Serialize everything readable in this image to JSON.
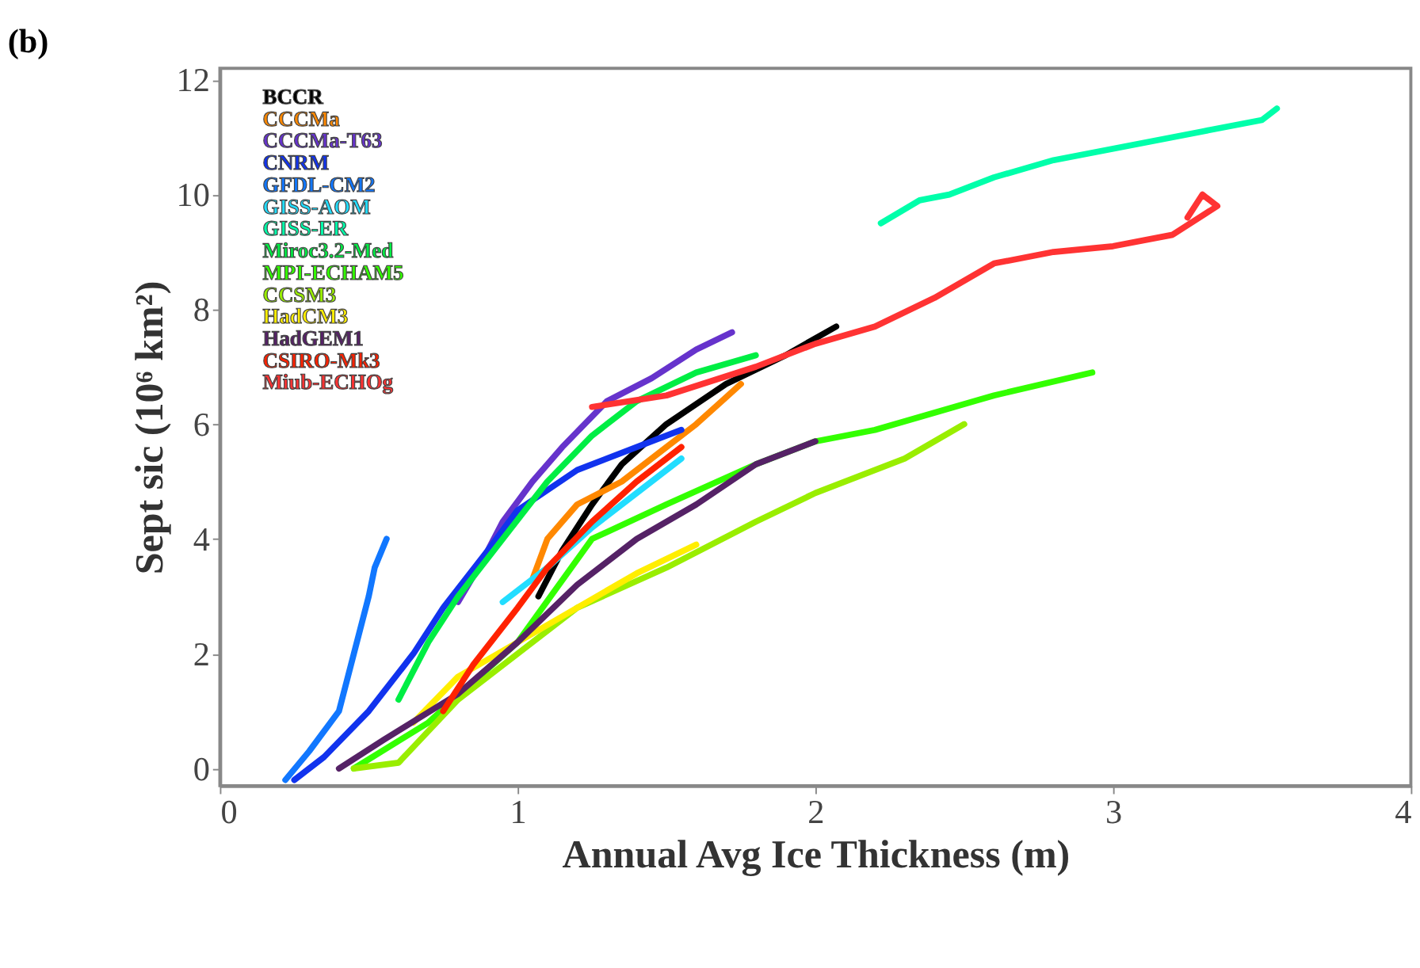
{
  "chart_data": {
    "type": "line",
    "title": "(b)",
    "xlabel": "Annual Avg Ice Thickness (m)",
    "ylabel": "Sept sic (10⁶ km²)",
    "xlim": [
      0,
      4
    ],
    "xticks": [
      0,
      1,
      2,
      3,
      4
    ],
    "ylim": [
      -0.3,
      12.2
    ],
    "yticks": [
      0,
      2,
      4,
      6,
      8,
      10,
      12
    ],
    "grid": false,
    "legend": "top left",
    "marker": "none",
    "line_style": "solid",
    "series": [
      {
        "name": "BCCR",
        "color": "#000000",
        "x": [
          1.07,
          1.15,
          1.25,
          1.35,
          1.5,
          1.7,
          1.9,
          2.07
        ],
        "values": [
          3.0,
          3.8,
          4.6,
          5.3,
          6.0,
          6.7,
          7.2,
          7.7
        ]
      },
      {
        "name": "CCCMa",
        "color": "#ff8800",
        "x": [
          1.05,
          1.1,
          1.2,
          1.35,
          1.5,
          1.6,
          1.75
        ],
        "values": [
          3.3,
          4.0,
          4.6,
          5.0,
          5.6,
          6.0,
          6.7
        ]
      },
      {
        "name": "CCCMa-T63",
        "color": "#6633cc",
        "x": [
          0.8,
          0.88,
          0.95,
          1.05,
          1.15,
          1.3,
          1.45,
          1.6,
          1.72
        ],
        "values": [
          2.9,
          3.6,
          4.3,
          5.0,
          5.6,
          6.4,
          6.8,
          7.3,
          7.6
        ]
      },
      {
        "name": "CNRM",
        "color": "#1133ee",
        "x": [
          0.25,
          0.35,
          0.5,
          0.65,
          0.75,
          0.9,
          1.0,
          1.2,
          1.4,
          1.55
        ],
        "values": [
          -0.2,
          0.2,
          1.0,
          2.0,
          2.8,
          3.8,
          4.5,
          5.2,
          5.6,
          5.9
        ]
      },
      {
        "name": "GFDL-CM2",
        "color": "#1177ff",
        "x": [
          0.22,
          0.3,
          0.4,
          0.45,
          0.5,
          0.52,
          0.56
        ],
        "values": [
          -0.2,
          0.3,
          1.0,
          2.0,
          3.0,
          3.5,
          4.0
        ]
      },
      {
        "name": "GISS-AOM",
        "color": "#22ddff",
        "x": [
          0.95,
          1.1,
          1.25,
          1.4,
          1.55
        ],
        "values": [
          2.9,
          3.5,
          4.2,
          4.8,
          5.4
        ]
      },
      {
        "name": "GISS-ER",
        "color": "#00ffaa",
        "x": [
          2.22,
          2.35,
          2.45,
          2.6,
          2.8,
          3.0,
          3.3,
          3.5,
          3.55
        ],
        "values": [
          9.5,
          9.9,
          10.0,
          10.3,
          10.6,
          10.8,
          11.1,
          11.3,
          11.5
        ]
      },
      {
        "name": "Miroc3.2-Med",
        "color": "#00ee44",
        "x": [
          0.6,
          0.7,
          0.8,
          0.95,
          1.1,
          1.25,
          1.4,
          1.6,
          1.8
        ],
        "values": [
          1.2,
          2.2,
          3.0,
          4.0,
          5.0,
          5.8,
          6.4,
          6.9,
          7.2
        ]
      },
      {
        "name": "MPI-ECHAM5",
        "color": "#33ff00",
        "x": [
          0.45,
          0.7,
          1.0,
          1.25,
          1.5,
          1.8,
          2.0,
          2.2,
          2.4,
          2.6,
          2.93
        ],
        "values": [
          0.0,
          0.8,
          2.2,
          4.0,
          4.6,
          5.3,
          5.7,
          5.9,
          6.2,
          6.5,
          6.9
        ]
      },
      {
        "name": "CCSM3",
        "color": "#99ee00",
        "x": [
          0.45,
          0.6,
          0.8,
          1.0,
          1.2,
          1.5,
          1.8,
          2.0,
          2.3,
          2.5
        ],
        "values": [
          0.0,
          0.1,
          1.2,
          2.0,
          2.8,
          3.5,
          4.3,
          4.8,
          5.4,
          6.0
        ]
      },
      {
        "name": "HadCM3",
        "color": "#ffee00",
        "x": [
          0.65,
          0.8,
          1.0,
          1.2,
          1.4,
          1.6
        ],
        "values": [
          0.8,
          1.6,
          2.2,
          2.8,
          3.4,
          3.9
        ]
      },
      {
        "name": "HadGEM1",
        "color": "#552266",
        "x": [
          0.4,
          0.55,
          0.8,
          1.0,
          1.2,
          1.4,
          1.6,
          1.8,
          2.0
        ],
        "values": [
          0.0,
          0.5,
          1.3,
          2.2,
          3.2,
          4.0,
          4.6,
          5.3,
          5.7
        ]
      },
      {
        "name": "CSIRO-Mk3",
        "color": "#ff2200",
        "x": [
          0.75,
          0.85,
          1.0,
          1.1,
          1.25,
          1.4,
          1.55
        ],
        "values": [
          1.0,
          1.8,
          2.8,
          3.5,
          4.3,
          5.0,
          5.6
        ]
      },
      {
        "name": "Miub-ECHOg",
        "color": "#ff3333",
        "x": [
          1.25,
          1.5,
          1.8,
          2.0,
          2.2,
          2.4,
          2.6,
          2.8,
          3.0,
          3.2,
          3.35,
          3.3,
          3.25
        ],
        "values": [
          6.3,
          6.5,
          7.0,
          7.4,
          7.7,
          8.2,
          8.8,
          9.0,
          9.1,
          9.3,
          9.8,
          10.0,
          9.6
        ]
      }
    ]
  }
}
